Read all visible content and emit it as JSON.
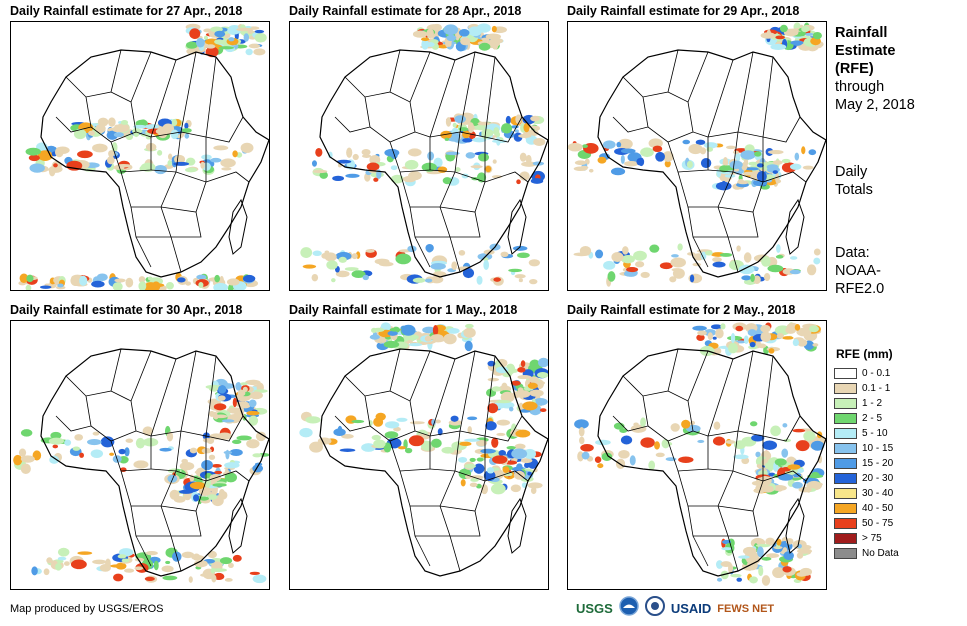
{
  "panels": [
    {
      "title": "Daily Rainfall estimate for 27 Apr., 2018"
    },
    {
      "title": "Daily Rainfall estimate for 28 Apr., 2018"
    },
    {
      "title": "Daily Rainfall estimate for 29 Apr., 2018"
    },
    {
      "title": "Daily Rainfall estimate for 30 Apr., 2018"
    },
    {
      "title": "Daily Rainfall estimate for 1 May., 2018"
    },
    {
      "title": "Daily Rainfall estimate for 2 May., 2018"
    }
  ],
  "sidebar": {
    "heading": [
      "Rainfall",
      "Estimate",
      "(RFE)"
    ],
    "through": [
      "through",
      "May 2, 2018"
    ],
    "totals": [
      "Daily",
      "Totals"
    ],
    "source": [
      "Data:",
      "NOAA-",
      "RFE2.0"
    ]
  },
  "legend": {
    "title": "RFE (mm)",
    "items": [
      {
        "label": "0 - 0.1",
        "color": "#ffffff"
      },
      {
        "label": "0.1 - 1",
        "color": "#e8d6b4"
      },
      {
        "label": "1 - 2",
        "color": "#c7f0b8"
      },
      {
        "label": "2 - 5",
        "color": "#6fd66f"
      },
      {
        "label": "5 - 10",
        "color": "#b4ecf6"
      },
      {
        "label": "10 - 15",
        "color": "#87c3ee"
      },
      {
        "label": "15 - 20",
        "color": "#4f9be6"
      },
      {
        "label": "20 - 30",
        "color": "#2463d8"
      },
      {
        "label": "30 - 40",
        "color": "#f8e68a"
      },
      {
        "label": "40 - 50",
        "color": "#f5a623"
      },
      {
        "label": "50 - 75",
        "color": "#e8401c"
      },
      {
        "label": "> 75",
        "color": "#a01c1c"
      },
      {
        "label": "No Data",
        "color": "#8c8c8c"
      }
    ]
  },
  "footer": {
    "credit": "Map produced by USGS/EROS",
    "logos": [
      "USGS",
      "USAID",
      "FEWS NET"
    ]
  }
}
